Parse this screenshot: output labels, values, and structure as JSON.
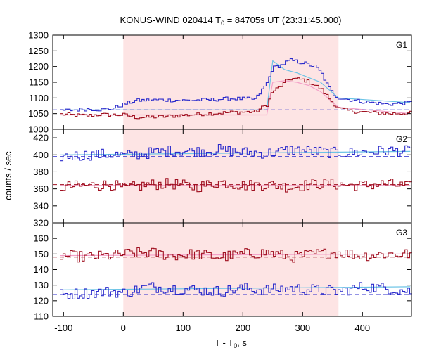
{
  "chart_data": {
    "type": "line",
    "title_prefix": "KONUS-WIND 020414 T",
    "title_sub": "0",
    "title_suffix": " = 84705s UT (23:31:45.000)",
    "xlabel_prefix": "T - T",
    "xlabel_sub": "0",
    "xlabel_suffix": ", s",
    "ylabel": "counts / sec",
    "xlim": [
      -118,
      482
    ],
    "x_ticks": [
      -100,
      0,
      100,
      200,
      300,
      400
    ],
    "grid": false,
    "shaded_interval": [
      0,
      360
    ],
    "colors": {
      "shade": "#fde4e4",
      "blue": "#2a2acb",
      "red": "#a01020",
      "light_blue": "#6cc4e6",
      "pink": "#f4a0c8"
    },
    "panels": [
      {
        "label": "G1",
        "ylim": [
          1000,
          1300
        ],
        "y_ticks": [
          1000,
          1050,
          1100,
          1150,
          1200,
          1250,
          1300
        ],
        "bin_s": 4,
        "background_levels": {
          "blue": 1062,
          "red": 1046
        },
        "series_blue": {
          "x": [
            -105,
            -80,
            -60,
            -40,
            -20,
            0,
            20,
            60,
            100,
            140,
            180,
            220,
            240,
            248,
            256,
            264,
            272,
            280,
            290,
            300,
            310,
            320,
            330,
            340,
            350,
            360,
            380,
            400,
            440,
            480
          ],
          "y": [
            1060,
            1062,
            1065,
            1063,
            1066,
            1080,
            1092,
            1094,
            1092,
            1094,
            1098,
            1096,
            1150,
            1195,
            1200,
            1205,
            1215,
            1220,
            1215,
            1212,
            1205,
            1200,
            1180,
            1140,
            1112,
            1100,
            1094,
            1088,
            1080,
            1085
          ]
        },
        "series_red": {
          "x": [
            -105,
            -80,
            -60,
            -40,
            -20,
            0,
            20,
            60,
            100,
            140,
            180,
            220,
            240,
            248,
            256,
            264,
            272,
            280,
            290,
            300,
            310,
            320,
            330,
            340,
            350,
            360,
            380,
            400,
            440,
            480
          ],
          "y": [
            1048,
            1045,
            1044,
            1047,
            1046,
            1046,
            1038,
            1040,
            1045,
            1050,
            1054,
            1056,
            1080,
            1120,
            1130,
            1140,
            1155,
            1162,
            1160,
            1158,
            1150,
            1140,
            1128,
            1105,
            1082,
            1065,
            1058,
            1055,
            1050,
            1052
          ]
        },
        "fit_blue": {
          "x": [
            -105,
            240,
            250,
            270,
            290,
            310,
            330,
            345,
            360,
            480
          ],
          "y": [
            1062,
            1062,
            1218,
            1190,
            1180,
            1165,
            1150,
            1125,
            1100,
            1085
          ]
        },
        "fit_red": {
          "x": [
            -105,
            240,
            250,
            270,
            290,
            310,
            330,
            345,
            360,
            480
          ],
          "y": [
            1046,
            1046,
            1150,
            1155,
            1150,
            1140,
            1120,
            1095,
            1070,
            1050
          ]
        }
      },
      {
        "label": "G2",
        "ylim": [
          320,
          430
        ],
        "y_ticks": [
          320,
          340,
          360,
          380,
          400,
          420
        ],
        "bin_s": 4,
        "background_levels": {
          "blue": 398,
          "red": 365
        },
        "series_blue": {
          "x": [
            -105,
            -60,
            -20,
            0,
            40,
            80,
            120,
            160,
            200,
            240,
            280,
            320,
            360,
            400,
            440,
            480
          ],
          "y": [
            398,
            400,
            401,
            399,
            402,
            405,
            404,
            406,
            403,
            402,
            406,
            404,
            402,
            403,
            405,
            404
          ]
        },
        "series_red": {
          "x": [
            -105,
            -60,
            -20,
            0,
            40,
            80,
            120,
            160,
            200,
            240,
            280,
            320,
            360,
            400,
            440,
            480
          ],
          "y": [
            362,
            364,
            365,
            360,
            365,
            366,
            362,
            368,
            364,
            365,
            362,
            366,
            365,
            364,
            366,
            362
          ]
        },
        "fit_blue": {
          "x": [
            -105,
            480
          ],
          "y": [
            400,
            404
          ]
        },
        "fit_red": {
          "x": [
            -105,
            480
          ],
          "y": [
            364,
            364
          ]
        }
      },
      {
        "label": "G3",
        "ylim": [
          110,
          170
        ],
        "y_ticks": [
          110,
          120,
          130,
          140,
          150,
          160
        ],
        "bin_s": 4,
        "background_levels": {
          "blue": 124,
          "red": 148
        },
        "series_blue": {
          "x": [
            -105,
            -60,
            -20,
            0,
            40,
            80,
            120,
            160,
            200,
            240,
            280,
            320,
            360,
            400,
            440,
            480
          ],
          "y": [
            124,
            125,
            126,
            125,
            129,
            128,
            127,
            126,
            128,
            127,
            128,
            127,
            126,
            129,
            128,
            126
          ]
        },
        "series_red": {
          "x": [
            -105,
            -60,
            -20,
            0,
            40,
            80,
            120,
            160,
            200,
            240,
            280,
            320,
            360,
            400,
            440,
            480
          ],
          "y": [
            149,
            148,
            149,
            150,
            151,
            149,
            150,
            148,
            150,
            151,
            148,
            150,
            151,
            149,
            150,
            150
          ]
        },
        "fit_blue": {
          "x": [
            -105,
            480
          ],
          "y": [
            127,
            129
          ]
        },
        "fit_red": {
          "x": [
            -105,
            480
          ],
          "y": [
            149,
            150
          ]
        }
      }
    ]
  }
}
